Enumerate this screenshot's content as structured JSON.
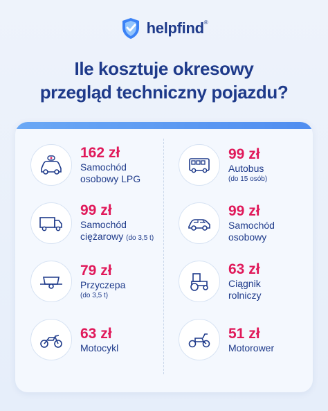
{
  "brand": {
    "name": "helpfind",
    "mark": "®",
    "primary_color": "#1e3a8a",
    "accent_color": "#e0195a"
  },
  "headline": {
    "line1": "Ile kosztuje okresowy",
    "line2": "przegląd techniczny pojazdu?"
  },
  "items": [
    {
      "icon": "car-lpg-icon",
      "price": "162 zł",
      "line1": "Samochód",
      "line2": "osobowy LPG",
      "note": ""
    },
    {
      "icon": "bus-icon",
      "price": "99 zł",
      "line1": "Autobus",
      "line2": "",
      "note": "(do 15 osób)"
    },
    {
      "icon": "truck-icon",
      "price": "99 zł",
      "line1": "Samochód",
      "line2": "ciężarowy",
      "note": "(do 3,5 t)"
    },
    {
      "icon": "car-icon",
      "price": "99 zł",
      "line1": "Samochód",
      "line2": "osobowy",
      "note": ""
    },
    {
      "icon": "trailer-icon",
      "price": "79 zł",
      "line1": "Przyczepa",
      "line2": "",
      "note": "(do 3,5 t)"
    },
    {
      "icon": "tractor-icon",
      "price": "63 zł",
      "line1": "Ciągnik",
      "line2": "rolniczy",
      "note": ""
    },
    {
      "icon": "motorcycle-icon",
      "price": "63 zł",
      "line1": "Motocykl",
      "line2": "",
      "note": ""
    },
    {
      "icon": "scooter-icon",
      "price": "51 zł",
      "line1": "Motorower",
      "line2": "",
      "note": ""
    }
  ]
}
